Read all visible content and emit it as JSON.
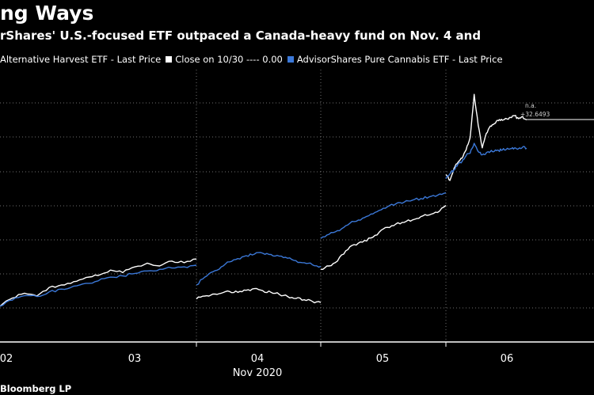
{
  "header": {
    "title": "ng Ways",
    "subtitle": "rShares' U.S.-focused ETF outpaced a Canada-heavy fund on Nov. 4 and"
  },
  "legend": [
    {
      "label": "Alternative Harvest ETF - Last Price",
      "color": "#ffffff"
    },
    {
      "label": "Close on 10/30 ---- 0.00",
      "color": "#ffffff"
    },
    {
      "label": "AdvisorShares Pure Cannabis ETF - Last Price",
      "color": "#3b78d8"
    }
  ],
  "colors": {
    "background": "#000000",
    "grid": "#6e6e6e",
    "series_a": "#ffffff",
    "series_b": "#3b78d8"
  },
  "chart_data": {
    "type": "line",
    "x_tick_labels": [
      "02",
      "03",
      "04",
      "05",
      "06"
    ],
    "x_axis_label": "Nov 2020",
    "grid": true,
    "annotation": {
      "label_top": "n.a.",
      "label_value": "+32.6493"
    },
    "series": [
      {
        "name": "Alternative Harvest ETF - Last Price",
        "color": "#ffffff",
        "sessions": [
          [
            0.0,
            2.0,
            3.2,
            2.5,
            4.6,
            5.2,
            6.0,
            7.0,
            7.5,
            8.8,
            8.2,
            9.6,
            10.5,
            9.8,
            11.0,
            10.6,
            11.5
          ],
          [
            1.8,
            2.5,
            3.0,
            3.2,
            3.6,
            3.4,
            3.9,
            4.3,
            3.8,
            3.4,
            2.9,
            2.4,
            1.9,
            1.6,
            1.2,
            0.9
          ],
          [
            9.0,
            9.8,
            11.0,
            13.5,
            15.0,
            15.6,
            16.6,
            18.0,
            19.2,
            20.0,
            20.4,
            21.0,
            21.8,
            22.2,
            22.8,
            24.5
          ],
          [
            32.0,
            30.6,
            33.5,
            35.0,
            36.0,
            38.0,
            41.0,
            51.5,
            44.0,
            38.5,
            42.0,
            43.8,
            44.4,
            45.1,
            45.2,
            45.6,
            45.9,
            46.3,
            45.6,
            46.1,
            45.3
          ]
        ]
      },
      {
        "name": "AdvisorShares Pure Cannabis ETF - Last Price",
        "color": "#3b78d8",
        "sessions": [
          [
            0.0,
            1.5,
            2.6,
            2.4,
            3.5,
            4.2,
            4.9,
            5.6,
            6.2,
            7.1,
            7.4,
            8.0,
            8.6,
            9.0,
            9.3,
            9.6,
            10.0
          ],
          [
            5.2,
            7.1,
            8.4,
            9.6,
            10.8,
            11.6,
            12.3,
            12.7,
            12.9,
            12.6,
            12.2,
            11.7,
            11.1,
            10.6,
            10.1,
            9.7
          ],
          [
            16.5,
            17.5,
            18.4,
            19.6,
            20.6,
            21.4,
            22.4,
            23.3,
            24.2,
            24.9,
            25.3,
            25.8,
            26.2,
            26.6,
            27.0,
            27.6
          ],
          [
            31.0,
            32.2,
            33.2,
            34.6,
            35.2,
            36.6,
            37.2,
            39.6,
            37.6,
            36.8,
            37.3,
            37.6,
            37.7,
            37.9,
            38.0,
            38.2,
            38.3,
            38.5,
            38.3,
            38.7,
            38.4
          ]
        ]
      }
    ]
  },
  "footer": {
    "source": "Bloomberg LP"
  }
}
